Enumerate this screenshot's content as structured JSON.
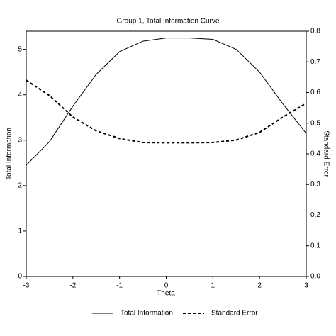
{
  "chart_data": {
    "type": "line",
    "title": "Group 1, Total Information Curve",
    "x_label": "Theta",
    "y_label": "Total Information",
    "y2_label": "Standard Error",
    "x": [
      -3,
      -2.5,
      -2,
      -1.5,
      -1,
      -0.5,
      0,
      0.5,
      1,
      1.5,
      2,
      2.5,
      3
    ],
    "xlim": [
      -3,
      3
    ],
    "xticks": [
      -3,
      -2,
      -1,
      0,
      1,
      2,
      3
    ],
    "ylim": [
      0,
      5.4
    ],
    "yticks": [
      0,
      1,
      2,
      3,
      4,
      5
    ],
    "y2lim": [
      0,
      0.8
    ],
    "y2ticks": [
      {
        "value": 0,
        "label": "0.0"
      },
      0.1,
      0.2,
      0.3,
      0.4,
      0.5,
      0.6,
      0.7,
      0.8
    ],
    "series": [
      {
        "name": "Total Information",
        "color": "#000000",
        "style": "solid",
        "axis": "y",
        "values": [
          2.45,
          2.97,
          3.75,
          4.45,
          4.95,
          5.18,
          5.25,
          5.25,
          5.22,
          5.0,
          4.5,
          3.8,
          3.15
        ]
      },
      {
        "name": "Standard Error",
        "color": "#000000",
        "style": "dashed",
        "axis": "y2",
        "values": [
          0.64,
          0.59,
          0.52,
          0.475,
          0.45,
          0.437,
          0.436,
          0.436,
          0.437,
          0.445,
          0.47,
          0.52,
          0.565
        ]
      }
    ]
  }
}
